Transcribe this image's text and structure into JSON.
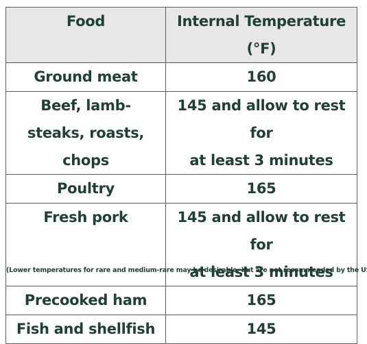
{
  "table": {
    "headers": {
      "food": "Food",
      "temperature": "Internal Temperature (°F)"
    },
    "rows": [
      {
        "food": [
          "Ground meat"
        ],
        "temperature": [
          "160"
        ]
      },
      {
        "food": [
          "Beef, lamb-",
          "steaks, roasts, chops"
        ],
        "temperature": [
          "145 and allow to rest for",
          "at least 3 minutes"
        ]
      },
      {
        "food": [
          "Poultry"
        ],
        "temperature": [
          "165"
        ]
      },
      {
        "food": [
          "Fresh pork"
        ],
        "temperature": [
          "145 and allow to rest for",
          "at least 3 minutes"
        ]
      },
      {
        "food": [
          "Precooked ham"
        ],
        "temperature": [
          "165"
        ]
      },
      {
        "food": [
          "Fish and shellfish"
        ],
        "temperature": [
          "145"
        ]
      }
    ]
  },
  "footnote": "(Lower temperatures for rare and medium-rare may be desirable, but are not recommended by the USDA)",
  "colors": {
    "text": "#1f3f37",
    "header_bg": "#e7e7e7",
    "border": "#5b5b5b"
  }
}
